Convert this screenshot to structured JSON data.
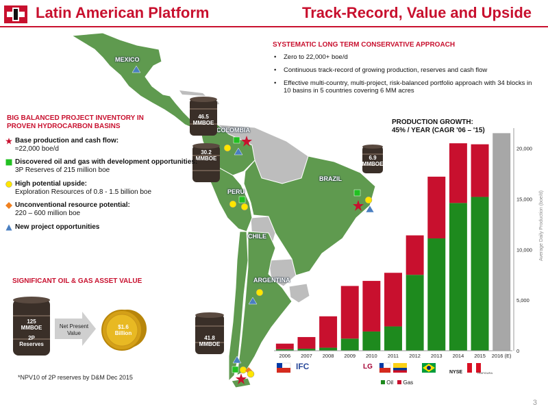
{
  "header": {
    "left_title": "Latin American Platform",
    "right_title": "Track-Record, Value and Upside"
  },
  "colors": {
    "brand_red": "#c8102e",
    "oil": "#1e8a1e",
    "gas": "#c8102e",
    "estimate": "#a7a7a7"
  },
  "map": {
    "countries": [
      "MEXICO",
      "COLOMBIA",
      "PERU",
      "BRAZIL",
      "CHILE",
      "ARGENTINA"
    ],
    "barrels": [
      {
        "value": "46.5",
        "unit": "MMBOE"
      },
      {
        "value": "30.2",
        "unit": "MMBOE"
      },
      {
        "value": "6.9",
        "unit": "MMBOE"
      },
      {
        "value": "41.8",
        "unit": "MMBOE"
      }
    ]
  },
  "inventory": {
    "title_line1": "BIG BALANCED PROJECT INVENTORY IN",
    "title_line2": "PROVEN HYDROCARBON BASINS",
    "items": [
      {
        "icon": "red-star-icon",
        "title": "Base production and cash flow:",
        "detail": "≈22,000 boe/d"
      },
      {
        "icon": "green-square-icon",
        "title": "Discovered oil and gas with development opportunities:",
        "detail": "3P Reserves of 215 million boe"
      },
      {
        "icon": "yellow-circle-icon",
        "title": "High potential upside:",
        "detail": "Exploration Resources of 0.8 - 1.5 billion boe"
      },
      {
        "icon": "orange-diamond-icon",
        "title": "Unconventional resource potential:",
        "detail": "220 – 600 million boe"
      },
      {
        "icon": "blue-triangle-icon",
        "title": "New project opportunities",
        "detail": ""
      }
    ]
  },
  "asset_value": {
    "title": "SIGNIFICANT OIL & GAS ASSET VALUE",
    "barrel_value": "125",
    "barrel_unit": "MMBOE",
    "barrel_sub1": "2P",
    "barrel_sub2": "Reserves",
    "arrow_line1": "Net Present",
    "arrow_line2": "Value",
    "coin_value": "$1.6",
    "coin_unit": "Billion",
    "note": "*NPV10 of 2P reserves by D&M Dec 2015"
  },
  "systematic": {
    "title": "SYSTEMATIC LONG TERM CONSERVATIVE APPROACH",
    "bullets": [
      "Zero to 22,000+ boe/d",
      "Continuous track-record of growing production, reserves and cash flow",
      "Effective multi-country, multi-project, risk-balanced portfolio approach with 34 blocks in 10 basins in 5 countries covering 6 MM acres"
    ]
  },
  "production": {
    "title_line1": "PRODUCTION GROWTH:",
    "title_line2": "45% / YEAR (CAGR '06 – '15)",
    "partner_logos": [
      "IFC",
      "LG",
      "NYSE",
      "TRAFIGURA"
    ]
  },
  "chart_data": {
    "type": "bar",
    "stacked": true,
    "categories": [
      "2006",
      "2007",
      "2008",
      "2009",
      "2010",
      "2011",
      "2012",
      "2013",
      "2014",
      "2015",
      "2016 (E)"
    ],
    "series": [
      {
        "name": "Oil",
        "values": [
          150,
          200,
          300,
          1200,
          1900,
          2400,
          7500,
          11100,
          14600,
          15200,
          null
        ]
      },
      {
        "name": "Gas",
        "values": [
          550,
          1150,
          3100,
          5200,
          5000,
          5300,
          3900,
          6100,
          5900,
          5200,
          null
        ]
      }
    ],
    "estimate": {
      "category": "2016 (E)",
      "value": 21500
    },
    "ylabel": "Average Daily Production (boe/d)",
    "ylim": [
      0,
      22000
    ],
    "yticks": [
      "0",
      "5,000",
      "10,000",
      "15,000",
      "20,000"
    ],
    "ytick_values": [
      0,
      5000,
      10000,
      15000,
      20000
    ],
    "legend_position": "bottom-left"
  },
  "page_number": "3"
}
